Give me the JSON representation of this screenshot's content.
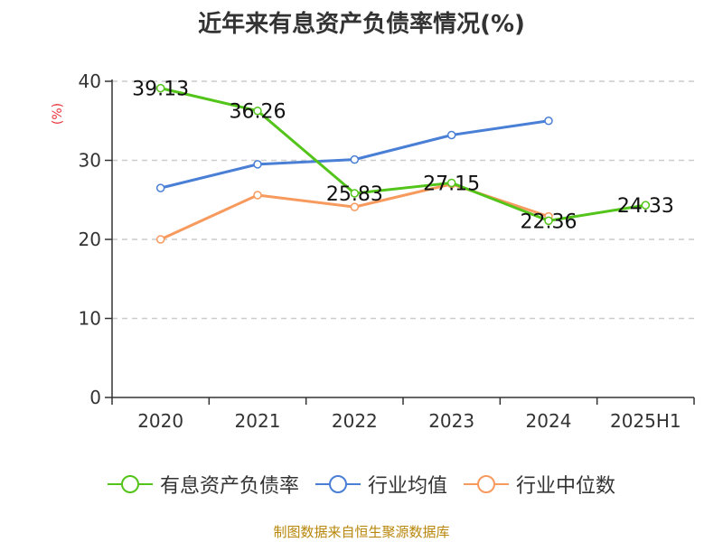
{
  "chart_data": {
    "type": "line",
    "title": "近年来有息资产负债率情况(%)",
    "ylabel": "(%)",
    "categories": [
      "2020",
      "2021",
      "2022",
      "2023",
      "2024",
      "2025H1"
    ],
    "ylim": [
      0,
      40
    ],
    "yticks": [
      0,
      10,
      20,
      30,
      40
    ],
    "grid": true,
    "legend_position": "bottom",
    "series": [
      {
        "name": "有息资产负债率",
        "color": "#52c41a",
        "values": [
          39.13,
          36.26,
          25.83,
          27.15,
          22.36,
          24.33
        ],
        "labels": [
          "39.13",
          "36.26",
          "25.83",
          "27.15",
          "22.36",
          "24.33"
        ]
      },
      {
        "name": "行业均值",
        "color": "#4a7fd6",
        "values": [
          26.5,
          29.5,
          30.1,
          33.2,
          35.0,
          null
        ]
      },
      {
        "name": "行业中位数",
        "color": "#f79a5e",
        "values": [
          20.0,
          25.6,
          24.1,
          27.0,
          22.9,
          null
        ]
      }
    ]
  },
  "source": "制图数据来自恒生聚源数据库"
}
